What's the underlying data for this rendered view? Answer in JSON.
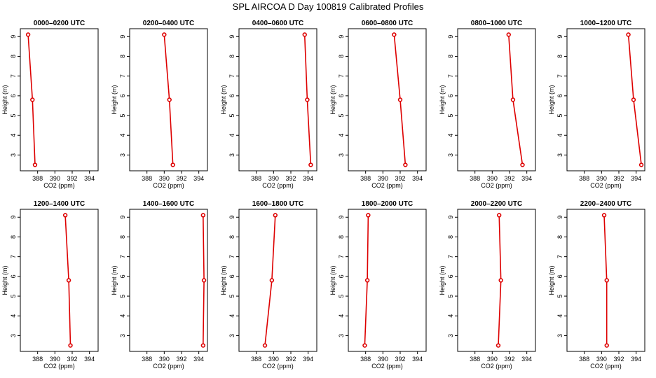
{
  "title": "SPL AIRCOA D  Day 100819  Calibrated Profiles",
  "colors": {
    "series": "#dd0000",
    "frame": "#000000",
    "background": "#ffffff"
  },
  "chart_data": [
    {
      "type": "line",
      "title": "0000–0200 UTC",
      "xlabel": "CO2 (ppm)",
      "ylabel": "Height (m)",
      "xlim": [
        386,
        395
      ],
      "ylim": [
        2.2,
        9.4
      ],
      "x_ticks": [
        388,
        390,
        392,
        394
      ],
      "y_ticks": [
        3,
        4,
        5,
        6,
        7,
        8,
        9
      ],
      "x": [
        386.9,
        387.4,
        387.7
      ],
      "y": [
        9.1,
        5.8,
        2.5
      ]
    },
    {
      "type": "line",
      "title": "0200–0400 UTC",
      "xlabel": "CO2 (ppm)",
      "ylabel": "Height (m)",
      "xlim": [
        386,
        395
      ],
      "ylim": [
        2.2,
        9.4
      ],
      "x_ticks": [
        388,
        390,
        392,
        394
      ],
      "y_ticks": [
        3,
        4,
        5,
        6,
        7,
        8,
        9
      ],
      "x": [
        390.0,
        390.6,
        391.0
      ],
      "y": [
        9.1,
        5.8,
        2.5
      ]
    },
    {
      "type": "line",
      "title": "0400–0600 UTC",
      "xlabel": "CO2 (ppm)",
      "ylabel": "Height (m)",
      "xlim": [
        386,
        395
      ],
      "ylim": [
        2.2,
        9.4
      ],
      "x_ticks": [
        388,
        390,
        392,
        394
      ],
      "y_ticks": [
        3,
        4,
        5,
        6,
        7,
        8,
        9
      ],
      "x": [
        393.6,
        393.9,
        394.3
      ],
      "y": [
        9.1,
        5.8,
        2.5
      ]
    },
    {
      "type": "line",
      "title": "0600–0800 UTC",
      "xlabel": "CO2 (ppm)",
      "ylabel": "Height (m)",
      "xlim": [
        386,
        395
      ],
      "ylim": [
        2.2,
        9.4
      ],
      "x_ticks": [
        388,
        390,
        392,
        394
      ],
      "y_ticks": [
        3,
        4,
        5,
        6,
        7,
        8,
        9
      ],
      "x": [
        391.3,
        392.0,
        392.6
      ],
      "y": [
        9.1,
        5.8,
        2.5
      ]
    },
    {
      "type": "line",
      "title": "0800–1000 UTC",
      "xlabel": "CO2 (ppm)",
      "ylabel": "Height (m)",
      "xlim": [
        386,
        395
      ],
      "ylim": [
        2.2,
        9.4
      ],
      "x_ticks": [
        388,
        390,
        392,
        394
      ],
      "y_ticks": [
        3,
        4,
        5,
        6,
        7,
        8,
        9
      ],
      "x": [
        391.9,
        392.4,
        393.5
      ],
      "y": [
        9.1,
        5.8,
        2.5
      ]
    },
    {
      "type": "line",
      "title": "1000–1200 UTC",
      "xlabel": "CO2 (ppm)",
      "ylabel": "Height (m)",
      "xlim": [
        386,
        395
      ],
      "ylim": [
        2.2,
        9.4
      ],
      "x_ticks": [
        388,
        390,
        392,
        394
      ],
      "y_ticks": [
        3,
        4,
        5,
        6,
        7,
        8,
        9
      ],
      "x": [
        393.1,
        393.7,
        394.6
      ],
      "y": [
        9.1,
        5.8,
        2.5
      ]
    },
    {
      "type": "line",
      "title": "1200–1400 UTC",
      "xlabel": "CO2 (ppm)",
      "ylabel": "Height (m)",
      "xlim": [
        386,
        395
      ],
      "ylim": [
        2.2,
        9.4
      ],
      "x_ticks": [
        388,
        390,
        392,
        394
      ],
      "y_ticks": [
        3,
        4,
        5,
        6,
        7,
        8,
        9
      ],
      "x": [
        391.2,
        391.6,
        391.8
      ],
      "y": [
        9.1,
        5.8,
        2.5
      ]
    },
    {
      "type": "line",
      "title": "1400–1600 UTC",
      "xlabel": "CO2 (ppm)",
      "ylabel": "Height (m)",
      "xlim": [
        386,
        395
      ],
      "ylim": [
        2.2,
        9.4
      ],
      "x_ticks": [
        388,
        390,
        392,
        394
      ],
      "y_ticks": [
        3,
        4,
        5,
        6,
        7,
        8,
        9
      ],
      "x": [
        394.5,
        394.6,
        394.5
      ],
      "y": [
        9.1,
        5.8,
        2.5
      ]
    },
    {
      "type": "line",
      "title": "1600–1800 UTC",
      "xlabel": "CO2 (ppm)",
      "ylabel": "Height (m)",
      "xlim": [
        386,
        395
      ],
      "ylim": [
        2.2,
        9.4
      ],
      "x_ticks": [
        388,
        390,
        392,
        394
      ],
      "y_ticks": [
        3,
        4,
        5,
        6,
        7,
        8,
        9
      ],
      "x": [
        390.2,
        389.8,
        389.0
      ],
      "y": [
        9.1,
        5.8,
        2.5
      ]
    },
    {
      "type": "line",
      "title": "1800–2000 UTC",
      "xlabel": "CO2 (ppm)",
      "ylabel": "Height (m)",
      "xlim": [
        386,
        395
      ],
      "ylim": [
        2.2,
        9.4
      ],
      "x_ticks": [
        388,
        390,
        392,
        394
      ],
      "y_ticks": [
        3,
        4,
        5,
        6,
        7,
        8,
        9
      ],
      "x": [
        388.3,
        388.2,
        387.9
      ],
      "y": [
        9.1,
        5.8,
        2.5
      ]
    },
    {
      "type": "line",
      "title": "2000–2200 UTC",
      "xlabel": "CO2 (ppm)",
      "ylabel": "Height (m)",
      "xlim": [
        386,
        395
      ],
      "ylim": [
        2.2,
        9.4
      ],
      "x_ticks": [
        388,
        390,
        392,
        394
      ],
      "y_ticks": [
        3,
        4,
        5,
        6,
        7,
        8,
        9
      ],
      "x": [
        390.8,
        391.0,
        390.7
      ],
      "y": [
        9.1,
        5.8,
        2.5
      ]
    },
    {
      "type": "line",
      "title": "2200–2400 UTC",
      "xlabel": "CO2 (ppm)",
      "ylabel": "Height (m)",
      "xlim": [
        386,
        395
      ],
      "ylim": [
        2.2,
        9.4
      ],
      "x_ticks": [
        388,
        390,
        392,
        394
      ],
      "y_ticks": [
        3,
        4,
        5,
        6,
        7,
        8,
        9
      ],
      "x": [
        390.3,
        390.6,
        390.6
      ],
      "y": [
        9.1,
        5.8,
        2.5
      ]
    }
  ]
}
